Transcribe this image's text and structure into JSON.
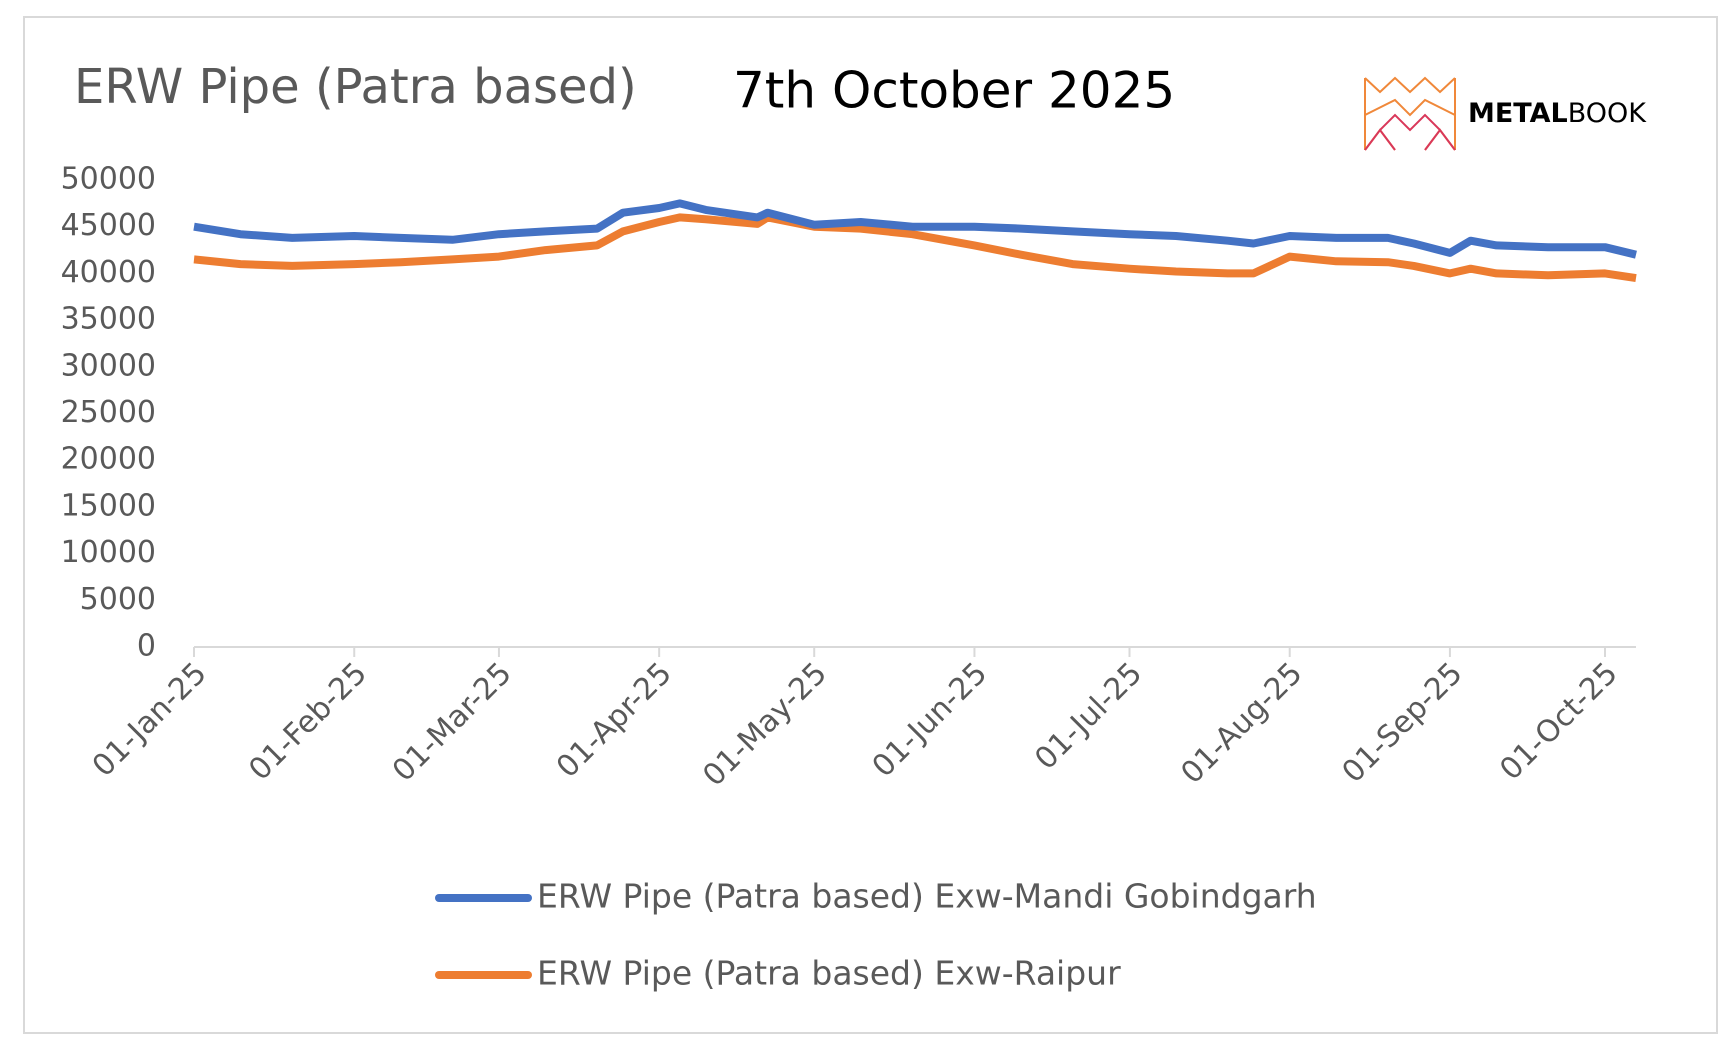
{
  "chart_data": {
    "type": "line",
    "title": "ERW Pipe (Patra based)",
    "subtitle": "7th October 2025",
    "brand": [
      "METAL",
      "BOOK"
    ],
    "x": [
      "2025-01-01",
      "2025-01-10",
      "2025-01-20",
      "2025-02-01",
      "2025-02-10",
      "2025-02-20",
      "2025-03-01",
      "2025-03-10",
      "2025-03-20",
      "2025-03-25",
      "2025-04-01",
      "2025-04-05",
      "2025-04-10",
      "2025-04-20",
      "2025-04-22",
      "2025-05-01",
      "2025-05-10",
      "2025-05-20",
      "2025-06-01",
      "2025-06-10",
      "2025-06-20",
      "2025-07-01",
      "2025-07-10",
      "2025-07-20",
      "2025-07-25",
      "2025-08-01",
      "2025-08-10",
      "2025-08-20",
      "2025-08-25",
      "2025-09-01",
      "2025-09-05",
      "2025-09-10",
      "2025-09-20",
      "2025-10-01",
      "2025-10-07"
    ],
    "series": [
      {
        "name": "ERW Pipe (Patra based) Exw-Mandi Gobindgarh",
        "color": "#4472c4",
        "values": [
          45000,
          44200,
          43800,
          44000,
          43800,
          43600,
          44200,
          44500,
          44800,
          46500,
          47000,
          47500,
          46800,
          46000,
          46500,
          45200,
          45500,
          45000,
          45000,
          44800,
          44500,
          44200,
          44000,
          43500,
          43200,
          44000,
          43800,
          43800,
          43200,
          42200,
          43500,
          43000,
          42800,
          42800,
          42000
        ]
      },
      {
        "name": "ERW Pipe (Patra based) Exw-Raipur",
        "color": "#ed7d31",
        "values": [
          41500,
          41000,
          40800,
          41000,
          41200,
          41500,
          41800,
          42500,
          43000,
          44500,
          45500,
          46000,
          45800,
          45300,
          46000,
          45000,
          44800,
          44200,
          43000,
          42000,
          41000,
          40500,
          40200,
          40000,
          40000,
          41800,
          41300,
          41200,
          40800,
          40000,
          40500,
          40000,
          39800,
          40000,
          39500
        ]
      }
    ],
    "xlim": [
      "2025-01-01",
      "2025-10-07"
    ],
    "xticks": [
      {
        "value": "2025-01-01",
        "label": "01-Jan-25"
      },
      {
        "value": "2025-02-01",
        "label": "01-Feb-25"
      },
      {
        "value": "2025-03-01",
        "label": "01-Mar-25"
      },
      {
        "value": "2025-04-01",
        "label": "01-Apr-25"
      },
      {
        "value": "2025-05-01",
        "label": "01-May-25"
      },
      {
        "value": "2025-06-01",
        "label": "01-Jun-25"
      },
      {
        "value": "2025-07-01",
        "label": "01-Jul-25"
      },
      {
        "value": "2025-08-01",
        "label": "01-Aug-25"
      },
      {
        "value": "2025-09-01",
        "label": "01-Sep-25"
      },
      {
        "value": "2025-10-01",
        "label": "01-Oct-25"
      }
    ],
    "ylim": [
      0,
      50000
    ],
    "yticks": [
      0,
      5000,
      10000,
      15000,
      20000,
      25000,
      30000,
      35000,
      40000,
      45000,
      50000
    ],
    "grid": false,
    "legend": "bottom"
  }
}
